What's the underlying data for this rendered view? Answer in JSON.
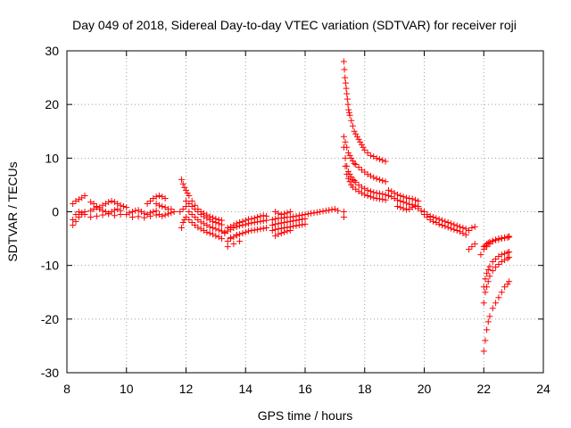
{
  "chart_data": {
    "type": "scatter",
    "title": "Day 049 of 2018, Sidereal Day-to-day VTEC variation (SDTVAR) for receiver roji",
    "xlabel": "GPS time / hours",
    "ylabel": "SDTVAR / TECUs",
    "xlim": [
      8,
      24
    ],
    "ylim": [
      -30,
      30
    ],
    "xticks": [
      8,
      10,
      12,
      14,
      16,
      18,
      20,
      22,
      24
    ],
    "yticks": [
      -30,
      -20,
      -10,
      0,
      10,
      20,
      30
    ],
    "grid": true,
    "marker": "+",
    "color": "#ff0000",
    "series": [
      {
        "name": "SDTVAR",
        "x": [
          8.2,
          8.3,
          8.4,
          8.5,
          8.6,
          8.2,
          8.3,
          8.4,
          8.5,
          8.6,
          8.2,
          8.3,
          8.4,
          8.5,
          8.6,
          8.8,
          8.9,
          9.0,
          9.1,
          9.2,
          9.3,
          9.4,
          9.5,
          9.6,
          9.7,
          9.8,
          9.9,
          10.0,
          8.8,
          8.9,
          9.0,
          9.1,
          9.2,
          9.3,
          9.4,
          9.5,
          9.6,
          9.7,
          9.8,
          8.8,
          9.0,
          9.2,
          9.4,
          9.6,
          9.8,
          10.0,
          10.1,
          10.2,
          10.3,
          10.4,
          10.5,
          10.6,
          10.7,
          10.8,
          10.9,
          11.0,
          10.2,
          10.4,
          10.6,
          10.8,
          11.0,
          10.7,
          10.8,
          10.9,
          11.0,
          11.1,
          11.2,
          11.3,
          11.0,
          11.1,
          11.2,
          11.3,
          11.4,
          11.5,
          11.1,
          11.2,
          11.3,
          11.4,
          11.5,
          11.6,
          11.8,
          11.9,
          12.0,
          11.85,
          11.9,
          11.95,
          12.0,
          12.05,
          12.1,
          12.2,
          12.3,
          12.4,
          12.5,
          12.6,
          12.7,
          12.8,
          12.9,
          13.0,
          13.1,
          13.2,
          12.0,
          12.1,
          12.2,
          12.3,
          12.4,
          12.5,
          12.6,
          12.7,
          12.8,
          12.9,
          13.0,
          13.1,
          13.2,
          12.1,
          12.2,
          12.3,
          12.4,
          12.5,
          12.6,
          12.7,
          12.8,
          12.9,
          13.0,
          13.1,
          13.2,
          13.3,
          12.0,
          12.1,
          12.2,
          12.3,
          12.4,
          12.5,
          12.6,
          12.7,
          12.8,
          12.9,
          13.0,
          13.1,
          13.2,
          11.85,
          11.9,
          11.95,
          13.4,
          13.5,
          13.6,
          13.7,
          13.8,
          13.9,
          14.0,
          14.1,
          14.2,
          14.3,
          14.4,
          14.5,
          14.6,
          14.7,
          13.3,
          13.4,
          13.5,
          13.6,
          13.7,
          13.8,
          13.9,
          14.0,
          14.1,
          14.2,
          14.3,
          14.4,
          14.5,
          14.6,
          14.7,
          13.4,
          13.5,
          13.6,
          13.7,
          13.8,
          13.9,
          14.0,
          14.1,
          14.2,
          14.3,
          14.4,
          14.5,
          14.6,
          14.7,
          13.4,
          13.6,
          13.8,
          13.5,
          13.7,
          14.9,
          15.0,
          15.1,
          15.2,
          15.3,
          15.4,
          15.5,
          15.6,
          15.7,
          15.8,
          15.9,
          16.0,
          16.1,
          16.2,
          16.3,
          16.4,
          16.5,
          16.6,
          16.7,
          16.8,
          16.9,
          17.0,
          17.1,
          14.9,
          15.0,
          15.1,
          15.2,
          15.3,
          15.4,
          15.5,
          15.6,
          15.7,
          15.8,
          15.9,
          16.0,
          14.9,
          15.0,
          15.1,
          15.2,
          15.3,
          15.4,
          15.5,
          15.6,
          15.7,
          15.8,
          15.9,
          16.0,
          15.0,
          15.1,
          15.2,
          15.3,
          15.4,
          15.5,
          15.0,
          15.1,
          15.2,
          15.3,
          15.4,
          15.5,
          17.3,
          17.32,
          17.34,
          17.36,
          17.38,
          17.4,
          17.42,
          17.44,
          17.46,
          17.48,
          17.5,
          17.55,
          17.6,
          17.65,
          17.7,
          17.75,
          17.8,
          17.85,
          17.9,
          17.95,
          18.0,
          18.1,
          18.2,
          18.3,
          18.4,
          18.5,
          18.6,
          18.7,
          17.3,
          17.35,
          17.4,
          17.45,
          17.5,
          17.55,
          17.6,
          17.65,
          17.7,
          17.8,
          17.9,
          18.0,
          18.1,
          18.2,
          18.3,
          18.4,
          18.5,
          18.6,
          18.7,
          17.3,
          17.35,
          17.4,
          17.45,
          17.5,
          17.55,
          17.6,
          17.65,
          17.7,
          17.8,
          17.9,
          18.0,
          18.1,
          18.2,
          18.3,
          18.4,
          18.5,
          18.6,
          18.7,
          17.35,
          17.4,
          17.45,
          17.5,
          17.55,
          17.6,
          17.7,
          17.8,
          17.9,
          18.0,
          18.1,
          18.2,
          18.3,
          18.4,
          18.5,
          18.6,
          18.7,
          17.3,
          17.3,
          18.8,
          18.9,
          19.0,
          19.1,
          19.2,
          19.3,
          19.4,
          19.5,
          19.6,
          19.7,
          19.8,
          18.8,
          18.9,
          19.0,
          19.1,
          19.2,
          19.3,
          19.4,
          19.5,
          19.6,
          19.7,
          19.8,
          19.1,
          19.2,
          19.3,
          19.4,
          19.5,
          19.6,
          19.7,
          19.8,
          19.9,
          20.0,
          20.1,
          20.2,
          20.3,
          20.4,
          20.5,
          20.6,
          20.7,
          20.8,
          20.9,
          21.0,
          21.1,
          21.2,
          21.3,
          21.4,
          20.0,
          20.1,
          20.2,
          20.3,
          20.4,
          20.5,
          20.6,
          20.7,
          20.8,
          20.9,
          21.0,
          21.1,
          21.2,
          21.3,
          21.4,
          21.5,
          21.6,
          21.7,
          21.5,
          21.6,
          21.7,
          22.0,
          22.05,
          22.1,
          22.15,
          22.2,
          22.3,
          22.4,
          22.5,
          22.6,
          22.7,
          22.8,
          22.85,
          22.0,
          22.05,
          22.1,
          22.15,
          22.2,
          22.3,
          22.4,
          22.5,
          22.6,
          22.7,
          22.8,
          22.85,
          22.0,
          22.05,
          22.1,
          22.15,
          22.2,
          22.3,
          22.4,
          22.5,
          22.6,
          22.7,
          22.8,
          22.85,
          22.0,
          22.05,
          22.1,
          22.15,
          22.2,
          22.3,
          22.4,
          22.5,
          22.6,
          22.7,
          22.8,
          22.85,
          21.9,
          22.0,
          22.1,
          22.2,
          22.3,
          22.4,
          22.5,
          22.6,
          22.7,
          22.8,
          22.85
        ],
        "y": [
          1.5,
          2.0,
          2.3,
          2.6,
          3.0,
          -1.5,
          -0.5,
          0.0,
          -0.2,
          -0.5,
          -2.5,
          -1.8,
          -1.0,
          -0.5,
          0.0,
          1.8,
          1.5,
          1.0,
          0.8,
          1.2,
          1.5,
          1.8,
          2.0,
          1.8,
          1.5,
          1.2,
          1.0,
          0.8,
          0.2,
          0.5,
          0.8,
          0.5,
          0.2,
          0.0,
          -0.3,
          0.0,
          0.3,
          0.5,
          0.2,
          -1.0,
          -0.8,
          -0.6,
          -0.4,
          -0.7,
          -0.5,
          -0.5,
          -0.2,
          0.0,
          0.2,
          0.3,
          0.0,
          -0.3,
          -0.5,
          -0.2,
          0.0,
          0.2,
          -1.0,
          -0.9,
          -1.1,
          -0.8,
          -0.6,
          1.5,
          2.0,
          2.5,
          2.8,
          3.0,
          2.8,
          2.5,
          1.5,
          1.2,
          1.0,
          0.8,
          0.5,
          0.5,
          -0.5,
          -0.8,
          -0.6,
          -0.4,
          -0.2,
          0.0,
          0.0,
          0.5,
          1.0,
          6.0,
          5.2,
          4.5,
          4.0,
          3.5,
          3.0,
          2.0,
          1.2,
          0.5,
          0.0,
          -0.3,
          -0.6,
          -0.9,
          -1.1,
          -1.3,
          -1.5,
          -1.6,
          2.0,
          1.5,
          1.0,
          0.5,
          0.0,
          -0.5,
          -0.9,
          -1.2,
          -1.5,
          -1.8,
          -2.0,
          -2.2,
          -2.4,
          0.0,
          -0.5,
          -1.0,
          -1.5,
          -1.9,
          -2.2,
          -2.5,
          -2.8,
          -3.0,
          -3.2,
          -3.4,
          -3.6,
          -3.8,
          -1.0,
          -1.5,
          -2.0,
          -2.5,
          -2.9,
          -3.2,
          -3.5,
          -3.8,
          -4.0,
          -4.2,
          -4.5,
          -4.7,
          -5.0,
          -3.0,
          -2.0,
          -1.5,
          -3.0,
          -2.8,
          -2.5,
          -2.2,
          -2.0,
          -1.8,
          -1.6,
          -1.4,
          -1.3,
          -1.2,
          -1.0,
          -0.8,
          -0.7,
          -0.8,
          -4.0,
          -3.6,
          -3.3,
          -3.0,
          -2.8,
          -2.6,
          -2.5,
          -2.4,
          -2.2,
          -2.1,
          -2.0,
          -1.9,
          -1.8,
          -1.7,
          -1.6,
          -5.5,
          -5.0,
          -4.7,
          -4.4,
          -4.2,
          -4.0,
          -3.8,
          -3.6,
          -3.5,
          -3.4,
          -3.3,
          -3.2,
          -3.1,
          -3.0,
          -6.5,
          -6.0,
          -5.5,
          -4.8,
          -4.3,
          -1.5,
          -1.3,
          -1.2,
          -1.2,
          -1.1,
          -1.0,
          -1.0,
          -0.9,
          -0.8,
          -0.7,
          -0.6,
          -0.5,
          -0.4,
          -0.3,
          -0.2,
          -0.1,
          0.0,
          0.1,
          0.2,
          0.3,
          0.4,
          0.5,
          0.2,
          -2.5,
          -2.3,
          -2.2,
          -2.1,
          -2.0,
          -1.9,
          -1.8,
          -1.7,
          -1.6,
          -1.5,
          -1.4,
          -1.3,
          -3.5,
          -3.3,
          -3.2,
          -3.1,
          -3.0,
          -2.9,
          -2.8,
          -2.7,
          -2.6,
          -2.5,
          -2.4,
          -2.3,
          -4.5,
          -4.2,
          -4.0,
          -3.8,
          -3.6,
          -3.5,
          0.0,
          -0.3,
          -0.5,
          -0.4,
          -0.2,
          0.0,
          28.0,
          26.5,
          25.0,
          24.0,
          23.0,
          22.0,
          21.0,
          20.0,
          19.0,
          18.5,
          18.0,
          17.0,
          16.0,
          15.0,
          14.5,
          14.0,
          13.5,
          13.0,
          12.5,
          12.0,
          11.5,
          11.0,
          10.5,
          10.3,
          10.0,
          9.8,
          9.6,
          9.4,
          14.0,
          13.0,
          12.0,
          11.0,
          10.5,
          10.0,
          9.5,
          9.0,
          8.8,
          8.3,
          7.8,
          7.4,
          7.0,
          6.7,
          6.4,
          6.2,
          6.0,
          5.8,
          5.6,
          12.0,
          10.0,
          8.5,
          7.5,
          7.0,
          6.5,
          6.0,
          5.8,
          5.5,
          5.0,
          4.6,
          4.3,
          4.0,
          3.8,
          3.6,
          3.5,
          3.4,
          3.3,
          3.2,
          8.5,
          7.0,
          6.2,
          5.6,
          5.0,
          4.6,
          4.2,
          3.8,
          3.5,
          3.2,
          3.0,
          2.8,
          2.6,
          2.5,
          2.4,
          2.3,
          2.2,
          0.0,
          -1.0,
          4.0,
          3.8,
          3.5,
          3.2,
          3.0,
          2.8,
          2.6,
          2.5,
          2.4,
          2.2,
          2.0,
          3.0,
          2.8,
          2.5,
          2.2,
          2.0,
          1.8,
          1.6,
          1.4,
          1.3,
          1.2,
          1.0,
          1.0,
          0.8,
          0.6,
          0.4,
          0.5,
          0.8,
          1.0,
          0.6,
          0.2,
          0.0,
          -0.5,
          -0.8,
          -1.0,
          -1.2,
          -1.4,
          -1.6,
          -1.8,
          -2.0,
          -2.2,
          -2.4,
          -2.6,
          -2.8,
          -3.0,
          -3.2,
          -0.5,
          -1.0,
          -1.5,
          -1.8,
          -2.0,
          -2.3,
          -2.5,
          -2.7,
          -2.9,
          -3.1,
          -3.3,
          -3.5,
          -3.7,
          -4.0,
          -4.3,
          -3.5,
          -3.0,
          -2.8,
          -7.0,
          -6.5,
          -6.0,
          -6.5,
          -6.3,
          -6.0,
          -5.8,
          -5.6,
          -5.4,
          -5.2,
          -5.0,
          -4.9,
          -4.8,
          -4.7,
          -4.6,
          -17.0,
          -15.0,
          -14.0,
          -13.0,
          -12.0,
          -11.0,
          -10.3,
          -9.8,
          -9.3,
          -9.0,
          -8.7,
          -8.5,
          -14.0,
          -12.5,
          -11.5,
          -10.8,
          -10.2,
          -9.3,
          -8.8,
          -8.3,
          -8.0,
          -7.8,
          -7.6,
          -7.5,
          -26.0,
          -24.0,
          -22.0,
          -20.5,
          -19.5,
          -18.0,
          -17.0,
          -16.0,
          -15.0,
          -14.0,
          -13.5,
          -13.0,
          -8.0,
          -7.0,
          -6.5,
          -6.0,
          -5.5,
          -5.3,
          -5.2,
          -5.0,
          -4.9,
          -4.8,
          -4.7
        ]
      }
    ]
  }
}
